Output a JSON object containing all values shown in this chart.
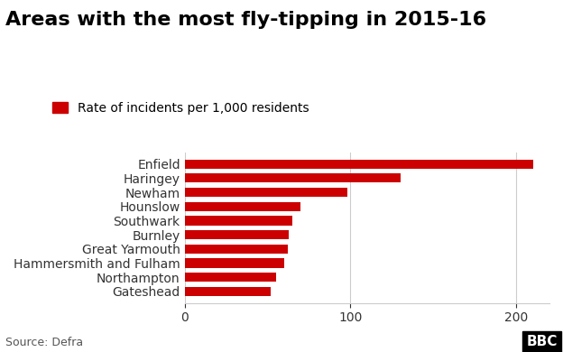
{
  "title": "Areas with the most fly-tipping in 2015-16",
  "legend_label": "Rate of incidents per 1,000 residents",
  "categories": [
    "Gateshead",
    "Northampton",
    "Hammersmith and Fulham",
    "Great Yarmouth",
    "Burnley",
    "Southwark",
    "Hounslow",
    "Newham",
    "Haringey",
    "Enfield"
  ],
  "values": [
    52,
    55,
    60,
    62,
    63,
    65,
    70,
    98,
    130,
    210
  ],
  "bar_color": "#cc0000",
  "legend_color": "#cc0000",
  "background_color": "#ffffff",
  "xlim": [
    0,
    220
  ],
  "xticks": [
    0,
    100,
    200
  ],
  "source_text": "Source: Defra",
  "bbc_text": "BBC",
  "title_fontsize": 16,
  "label_fontsize": 10,
  "tick_fontsize": 10,
  "source_fontsize": 9
}
